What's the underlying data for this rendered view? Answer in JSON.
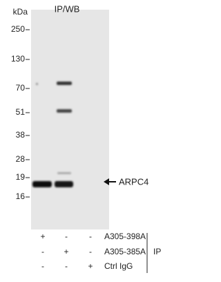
{
  "header": {
    "title": "IP/WB"
  },
  "markers": {
    "unit": "kDa",
    "labels": [
      "250",
      "130",
      "70",
      "51",
      "38",
      "28",
      "19",
      "16"
    ]
  },
  "target": {
    "label": "ARPC4"
  },
  "table": {
    "rows": [
      [
        "+",
        "-",
        "-",
        "A305-398A"
      ],
      [
        "-",
        "+",
        "-",
        "A305-385A"
      ],
      [
        "-",
        "-",
        "+",
        "Ctrl IgG"
      ]
    ],
    "group_label": "IP"
  }
}
